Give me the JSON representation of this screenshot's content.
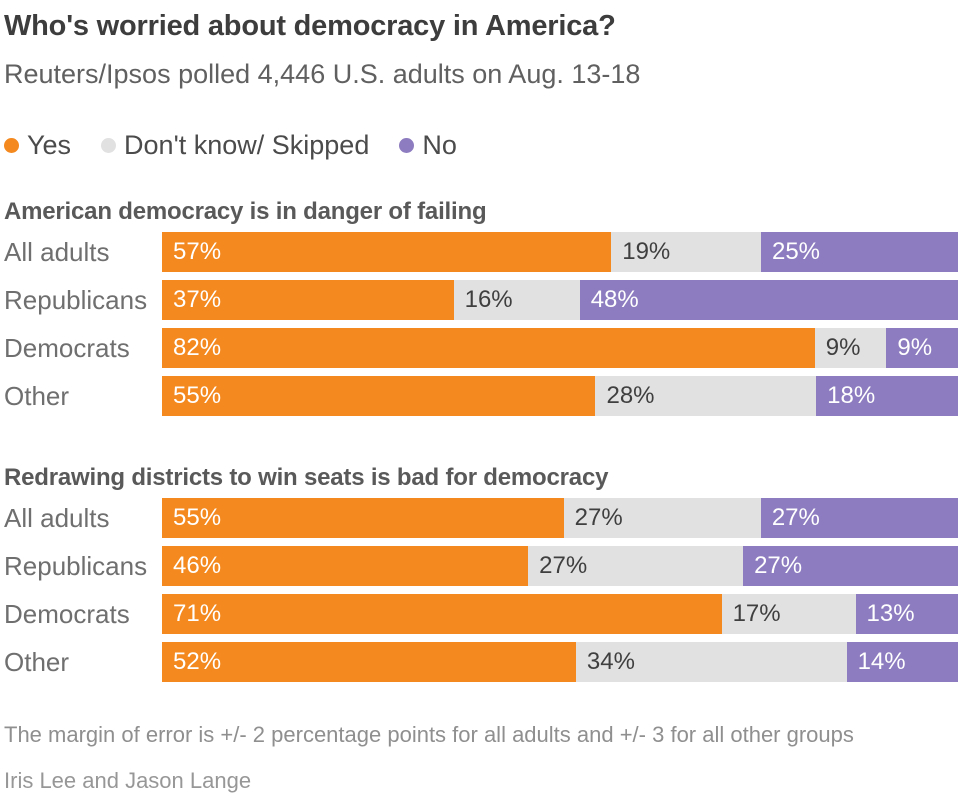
{
  "header": {
    "title": "Who's worried about democracy in America?",
    "subtitle": "Reuters/Ipsos polled 4,446 U.S. adults on Aug. 13-18"
  },
  "legend": {
    "items": [
      {
        "label": "Yes",
        "color": "#F4891F"
      },
      {
        "label": "Don't know/ Skipped",
        "color": "#E1E1E1"
      },
      {
        "label": "No",
        "color": "#8D7CBF"
      }
    ]
  },
  "chart_data": [
    {
      "type": "bar",
      "stacked": true,
      "orientation": "horizontal",
      "title": "American democracy is in danger of failing",
      "categories": [
        "All adults",
        "Republicans",
        "Democrats",
        "Other"
      ],
      "series": [
        {
          "name": "Yes",
          "color": "#F4891F",
          "label_color": "#ffffff",
          "values": [
            57,
            37,
            82,
            55
          ]
        },
        {
          "name": "Don't know/ Skipped",
          "color": "#E1E1E1",
          "label_color": "#3f3f3f",
          "values": [
            19,
            16,
            9,
            28
          ]
        },
        {
          "name": "No",
          "color": "#8D7CBF",
          "label_color": "#ffffff",
          "values": [
            25,
            48,
            9,
            18
          ]
        }
      ],
      "value_suffix": "%"
    },
    {
      "type": "bar",
      "stacked": true,
      "orientation": "horizontal",
      "title": "Redrawing districts to win seats is bad for democracy",
      "categories": [
        "All adults",
        "Republicans",
        "Democrats",
        "Other"
      ],
      "series": [
        {
          "name": "Yes",
          "color": "#F4891F",
          "label_color": "#ffffff",
          "values": [
            55,
            46,
            71,
            52
          ]
        },
        {
          "name": "Don't know/ Skipped",
          "color": "#E1E1E1",
          "label_color": "#3f3f3f",
          "values": [
            27,
            27,
            17,
            34
          ]
        },
        {
          "name": "No",
          "color": "#8D7CBF",
          "label_color": "#ffffff",
          "values": [
            27,
            27,
            13,
            14
          ]
        }
      ],
      "value_suffix": "%"
    }
  ],
  "footer": {
    "note": "The margin of error is +/- 2 percentage points for all adults and +/- 3 for all other groups",
    "byline": "Iris Lee and Jason Lange"
  }
}
